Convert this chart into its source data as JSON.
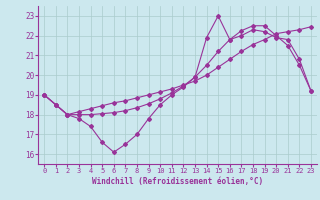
{
  "xlabel": "Windchill (Refroidissement éolien,°C)",
  "xlim": [
    -0.5,
    23.5
  ],
  "ylim": [
    15.5,
    23.5
  ],
  "yticks": [
    16,
    17,
    18,
    19,
    20,
    21,
    22,
    23
  ],
  "xticks": [
    0,
    1,
    2,
    3,
    4,
    5,
    6,
    7,
    8,
    9,
    10,
    11,
    12,
    13,
    14,
    15,
    16,
    17,
    18,
    19,
    20,
    21,
    22,
    23
  ],
  "bg_color": "#cce8ee",
  "grid_color": "#aacccc",
  "line_color": "#993399",
  "line1_y": [
    19.0,
    18.5,
    18.0,
    17.8,
    17.4,
    16.6,
    16.1,
    16.5,
    17.0,
    17.8,
    18.5,
    19.0,
    19.4,
    19.9,
    21.9,
    23.0,
    21.8,
    22.0,
    22.3,
    22.2,
    21.9,
    21.8,
    20.8,
    19.2
  ],
  "line2_y": [
    19.0,
    18.5,
    18.0,
    18.15,
    18.3,
    18.45,
    18.6,
    18.7,
    18.85,
    19.0,
    19.15,
    19.3,
    19.5,
    19.7,
    20.0,
    20.4,
    20.8,
    21.2,
    21.55,
    21.8,
    22.1,
    22.2,
    22.3,
    22.45
  ],
  "line3_y": [
    19.0,
    18.5,
    18.0,
    18.0,
    18.0,
    18.05,
    18.1,
    18.2,
    18.35,
    18.55,
    18.8,
    19.1,
    19.45,
    19.9,
    20.5,
    21.2,
    21.8,
    22.25,
    22.5,
    22.5,
    22.0,
    21.5,
    20.5,
    19.2
  ]
}
